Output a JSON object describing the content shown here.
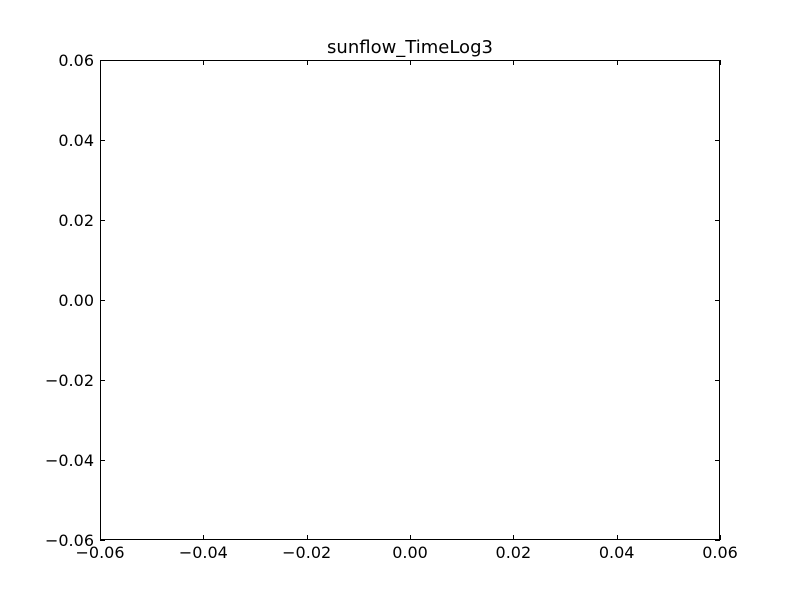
{
  "chart_data": {
    "type": "line",
    "title": "sunflow_TimeLog3",
    "xlabel": "",
    "ylabel": "",
    "xlim": [
      -0.06,
      0.06
    ],
    "ylim": [
      -0.06,
      0.06
    ],
    "x_ticks": [
      "−0.06",
      "−0.04",
      "−0.02",
      "0.00",
      "0.02",
      "0.04",
      "0.06"
    ],
    "y_ticks": [
      "−0.06",
      "−0.04",
      "−0.02",
      "0.00",
      "0.02",
      "0.04",
      "0.06"
    ],
    "series": [],
    "grid": false,
    "legend": "none"
  }
}
